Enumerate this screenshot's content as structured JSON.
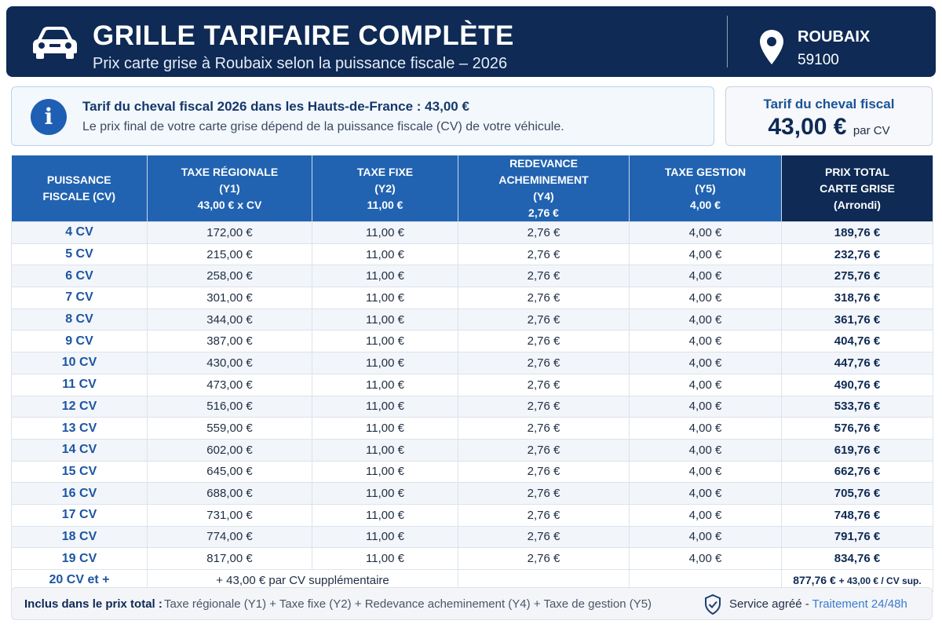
{
  "header": {
    "title": "GRILLE TARIFAIRE COMPLÈTE",
    "subtitle": "Prix carte grise à Roubaix selon la puissance fiscale – 2026",
    "city": "ROUBAIX",
    "postal_code": "59100",
    "car_icon": "car-icon",
    "location_icon": "map-pin-icon"
  },
  "info": {
    "icon": "info-icon",
    "icon_glyph": "i",
    "title": "Tarif du cheval fiscal 2026 dans les Hauts-de-France : 43,00 €",
    "text": "Le prix final de votre carte grise dépend de la puissance fiscale (CV) de votre véhicule."
  },
  "rate_box": {
    "label": "Tarif du cheval fiscal",
    "value": "43,00 €",
    "unit": "par CV"
  },
  "table": {
    "headers": [
      [
        "PUISSANCE",
        "FISCALE (CV)"
      ],
      [
        "TAXE RÉGIONALE",
        "(Y1)",
        "43,00 € x CV"
      ],
      [
        "TAXE FIXE",
        "(Y2)",
        "11,00 €"
      ],
      [
        "REDEVANCE",
        "ACHEMINEMENT",
        "(Y4)",
        "2,76 €"
      ],
      [
        "TAXE GESTION",
        "(Y5)",
        "4,00 €"
      ],
      [
        "PRIX TOTAL",
        "CARTE GRISE",
        "(Arrondi)"
      ]
    ],
    "rows": [
      [
        "4 CV",
        "172,00 €",
        "11,00 €",
        "2,76 €",
        "4,00 €",
        "189,76 €"
      ],
      [
        "5 CV",
        "215,00 €",
        "11,00 €",
        "2,76 €",
        "4,00 €",
        "232,76 €"
      ],
      [
        "6 CV",
        "258,00 €",
        "11,00 €",
        "2,76 €",
        "4,00 €",
        "275,76 €"
      ],
      [
        "7 CV",
        "301,00 €",
        "11,00 €",
        "2,76 €",
        "4,00 €",
        "318,76 €"
      ],
      [
        "8 CV",
        "344,00 €",
        "11,00 €",
        "2,76 €",
        "4,00 €",
        "361,76 €"
      ],
      [
        "9 CV",
        "387,00 €",
        "11,00 €",
        "2,76 €",
        "4,00 €",
        "404,76 €"
      ],
      [
        "10 CV",
        "430,00 €",
        "11,00 €",
        "2,76 €",
        "4,00 €",
        "447,76 €"
      ],
      [
        "11 CV",
        "473,00 €",
        "11,00 €",
        "2,76 €",
        "4,00 €",
        "490,76 €"
      ],
      [
        "12 CV",
        "516,00 €",
        "11,00 €",
        "2,76 €",
        "4,00 €",
        "533,76 €"
      ],
      [
        "13 CV",
        "559,00 €",
        "11,00 €",
        "2,76 €",
        "4,00 €",
        "576,76 €"
      ],
      [
        "14 CV",
        "602,00 €",
        "11,00 €",
        "2,76 €",
        "4,00 €",
        "619,76 €"
      ],
      [
        "15 CV",
        "645,00 €",
        "11,00 €",
        "2,76 €",
        "4,00 €",
        "662,76 €"
      ],
      [
        "16 CV",
        "688,00 €",
        "11,00 €",
        "2,76 €",
        "4,00 €",
        "705,76 €"
      ],
      [
        "17 CV",
        "731,00 €",
        "11,00 €",
        "2,76 €",
        "4,00 €",
        "748,76 €"
      ],
      [
        "18 CV",
        "774,00 €",
        "11,00 €",
        "2,76 €",
        "4,00 €",
        "791,76 €"
      ],
      [
        "19 CV",
        "817,00 €",
        "11,00 €",
        "2,76 €",
        "4,00 €",
        "834,76 €"
      ]
    ],
    "last_row": {
      "cv": "20 CV et +",
      "regional": "+ 43,00 € par CV supplémentaire",
      "total_main": "877,76 €",
      "total_extra": "+ 43,00 € / CV sup."
    }
  },
  "footer": {
    "label": "Inclus dans le prix total :",
    "text": "Taxe régionale (Y1) + Taxe fixe (Y2) + Redevance acheminement (Y4) + Taxe de gestion (Y5)",
    "shield_icon": "shield-check-icon",
    "service": "Service agréé",
    "dash": " - ",
    "delay": "Traitement 24/48h"
  },
  "colors": {
    "header_bg": "#0e2a55",
    "table_header": "#2163b1",
    "accent_blue": "#1c55a3",
    "info_bg": "#f3f8fd"
  }
}
